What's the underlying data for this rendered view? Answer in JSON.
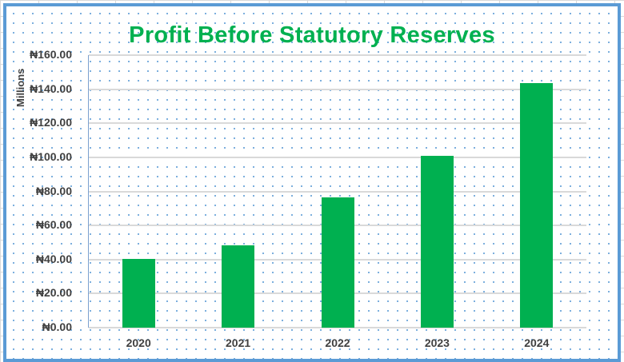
{
  "chart_data": {
    "type": "bar",
    "title": "Profit Before Statutory Reserves",
    "xlabel": "",
    "ylabel": "Millions",
    "categories": [
      "2020",
      "2021",
      "2022",
      "2023",
      "2024"
    ],
    "values": [
      40.4,
      48.3,
      76.5,
      100.9,
      143.6
    ],
    "ylim": [
      0,
      160
    ],
    "yticks": [
      "₦0.00",
      "₦20.00",
      "₦40.00",
      "₦60.00",
      "₦80.00",
      "₦100.00",
      "₦120.00",
      "₦140.00",
      "₦160.00"
    ],
    "grid": true,
    "legend": null,
    "bar_color": "#00b050",
    "title_color": "#00b050",
    "border_color": "#5b9bd5"
  }
}
